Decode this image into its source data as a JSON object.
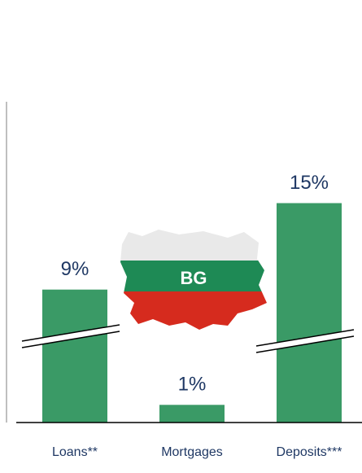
{
  "chart_data": {
    "type": "bar",
    "categories": [
      "Loans**",
      "Mortgages",
      "Deposits***"
    ],
    "values": [
      9,
      1,
      15
    ],
    "value_labels": [
      "9%",
      "1%",
      "15%"
    ],
    "color": "#3a9a66",
    "annotation": "BG"
  }
}
